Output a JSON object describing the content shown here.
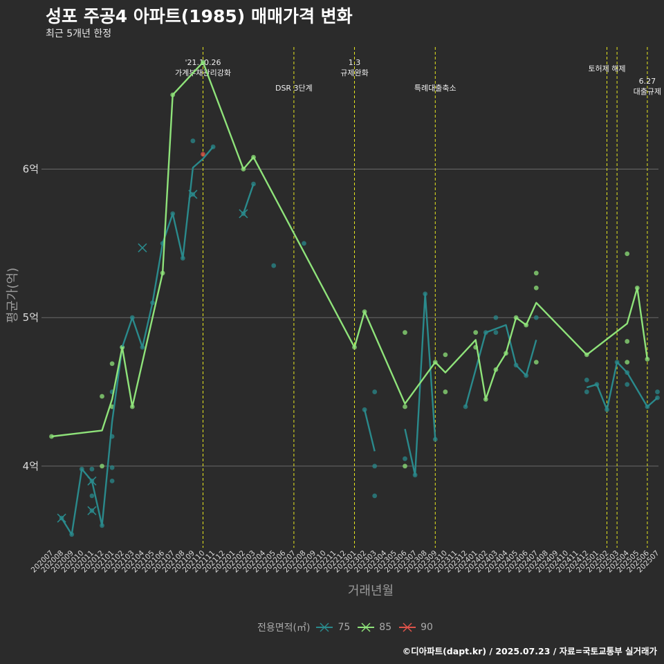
{
  "title": "성포 주공4 아파트(1985) 매매가격 변화",
  "subtitle": "최근 5개년 한정",
  "footer": "©디아파트(dapt.kr) / 2025.07.23 / 자료=국토교통부 실거래가",
  "legend_title": "전용면적(㎡)",
  "colors": {
    "background": "#2b2b2b",
    "s75": "#2a8a8c",
    "s85": "#8fe37a",
    "s90": "#e0534a",
    "vline": "#e8e81e",
    "grid": "#6a6a6a"
  },
  "chart_data": {
    "type": "line",
    "title": "성포 주공4 아파트(1985) 매매가격 변화",
    "xlabel": "거래년월",
    "ylabel": "평균가(억)",
    "ylim": [
      3.45,
      6.85
    ],
    "yticks": [
      {
        "value": 4,
        "label": "4억"
      },
      {
        "value": 5,
        "label": "5억"
      },
      {
        "value": 6,
        "label": "6억"
      }
    ],
    "grid": true,
    "legend_position": "bottom",
    "categories": [
      "202007",
      "202008",
      "202009",
      "202010",
      "202011",
      "202012",
      "202101",
      "202102",
      "202103",
      "202104",
      "202105",
      "202106",
      "202107",
      "202108",
      "202109",
      "202110",
      "202111",
      "202112",
      "202201",
      "202202",
      "202203",
      "202204",
      "202205",
      "202206",
      "202207",
      "202208",
      "202209",
      "202210",
      "202211",
      "202212",
      "202301",
      "202302",
      "202303",
      "202304",
      "202305",
      "202306",
      "202307",
      "202308",
      "202309",
      "202310",
      "202311",
      "202312",
      "202401",
      "202402",
      "202403",
      "202404",
      "202405",
      "202406",
      "202407",
      "202408",
      "202409",
      "202410",
      "202411",
      "202412",
      "202501",
      "202502",
      "202503",
      "202504",
      "202505",
      "202506",
      "202507"
    ],
    "series": [
      {
        "name": "75",
        "segments": [
          [
            [
              "202008",
              3.65
            ],
            [
              "202009",
              3.54
            ],
            [
              "202010",
              3.98
            ],
            [
              "202011",
              3.9
            ],
            [
              "202012",
              3.6
            ],
            [
              "202101",
              4.3
            ],
            [
              "202102",
              4.8
            ],
            [
              "202103",
              5.0
            ],
            [
              "202104",
              4.8
            ],
            [
              "202105",
              5.1
            ],
            [
              "202106",
              5.5
            ],
            [
              "202107",
              5.7
            ],
            [
              "202108",
              5.4
            ],
            [
              "202109",
              6.01
            ],
            [
              "202110",
              6.07
            ],
            [
              "202111",
              6.15
            ]
          ],
          [
            [
              "202202",
              5.7
            ],
            [
              "202203",
              5.9
            ]
          ],
          [
            [
              "202302",
              4.38
            ],
            [
              "202303",
              4.1
            ]
          ],
          [
            [
              "202306",
              4.25
            ],
            [
              "202307",
              3.94
            ],
            [
              "202308",
              5.16
            ],
            [
              "202309",
              4.18
            ]
          ],
          [
            [
              "202312",
              4.4
            ],
            [
              "202401",
              4.65
            ],
            [
              "202402",
              4.9
            ],
            [
              "202404",
              4.95
            ],
            [
              "202405",
              4.68
            ],
            [
              "202406",
              4.61
            ],
            [
              "202407",
              4.85
            ]
          ],
          [
            [
              "202412",
              4.53
            ],
            [
              "202501",
              4.55
            ],
            [
              "202502",
              4.38
            ],
            [
              "202503",
              4.7
            ],
            [
              "202504",
              4.63
            ],
            [
              "202506",
              4.4
            ],
            [
              "202507",
              4.46
            ]
          ]
        ],
        "points": [
          [
            "202008",
            3.65
          ],
          [
            "202009",
            3.54
          ],
          [
            "202010",
            3.98
          ],
          [
            "202011",
            3.98
          ],
          [
            "202011",
            3.9
          ],
          [
            "202011",
            3.8
          ],
          [
            "202011",
            3.7
          ],
          [
            "202012",
            3.6
          ],
          [
            "202101",
            3.9
          ],
          [
            "202101",
            3.99
          ],
          [
            "202101",
            4.2
          ],
          [
            "202101",
            4.5
          ],
          [
            "202102",
            4.8
          ],
          [
            "202103",
            5.0
          ],
          [
            "202104",
            4.8
          ],
          [
            "202105",
            5.1
          ],
          [
            "202106",
            5.5
          ],
          [
            "202107",
            5.7
          ],
          [
            "202108",
            5.4
          ],
          [
            "202109",
            6.19
          ],
          [
            "202109",
            5.83
          ],
          [
            "202111",
            6.15
          ],
          [
            "202202",
            5.7
          ],
          [
            "202203",
            5.9
          ],
          [
            "202205",
            5.35
          ],
          [
            "202208",
            5.5
          ],
          [
            "202302",
            4.38
          ],
          [
            "202303",
            4.5
          ],
          [
            "202303",
            4.0
          ],
          [
            "202303",
            3.8
          ],
          [
            "202306",
            4.05
          ],
          [
            "202307",
            3.94
          ],
          [
            "202308",
            5.16
          ],
          [
            "202309",
            4.18
          ],
          [
            "202312",
            4.4
          ],
          [
            "202402",
            4.9
          ],
          [
            "202403",
            5.0
          ],
          [
            "202403",
            4.9
          ],
          [
            "202405",
            4.68
          ],
          [
            "202406",
            4.61
          ],
          [
            "202407",
            5.0
          ],
          [
            "202412",
            4.58
          ],
          [
            "202412",
            4.5
          ],
          [
            "202501",
            4.55
          ],
          [
            "202502",
            4.38
          ],
          [
            "202503",
            4.7
          ],
          [
            "202504",
            4.55
          ],
          [
            "202504",
            4.63
          ],
          [
            "202506",
            4.4
          ],
          [
            "202507",
            4.5
          ],
          [
            "202507",
            4.46
          ]
        ],
        "crosses": [
          [
            "202008",
            3.65
          ],
          [
            "202011",
            3.9
          ],
          [
            "202011",
            3.7
          ],
          [
            "202104",
            5.47
          ],
          [
            "202109",
            5.83
          ],
          [
            "202202",
            5.7
          ]
        ]
      },
      {
        "name": "85",
        "segments": [
          [
            [
              "202007",
              4.2
            ],
            [
              "202012",
              4.24
            ],
            [
              "202101",
              4.45
            ],
            [
              "202102",
              4.8
            ],
            [
              "202103",
              4.4
            ],
            [
              "202106",
              5.3
            ],
            [
              "202107",
              6.5
            ],
            [
              "202110",
              6.72
            ],
            [
              "202202",
              6.0
            ],
            [
              "202203",
              6.08
            ],
            [
              "202301",
              4.8
            ],
            [
              "202302",
              5.04
            ],
            [
              "202306",
              4.42
            ],
            [
              "202309",
              4.7
            ],
            [
              "202310",
              4.63
            ],
            [
              "202401",
              4.85
            ],
            [
              "202402",
              4.45
            ],
            [
              "202403",
              4.65
            ],
            [
              "202404",
              4.76
            ],
            [
              "202405",
              5.0
            ],
            [
              "202406",
              4.95
            ],
            [
              "202407",
              5.1
            ],
            [
              "202412",
              4.75
            ],
            [
              "202504",
              4.96
            ],
            [
              "202505",
              5.2
            ],
            [
              "202506",
              4.72
            ]
          ]
        ],
        "points": [
          [
            "202007",
            4.2
          ],
          [
            "202012",
            4.47
          ],
          [
            "202012",
            4.0
          ],
          [
            "202101",
            4.69
          ],
          [
            "202101",
            4.4
          ],
          [
            "202102",
            4.8
          ],
          [
            "202103",
            4.4
          ],
          [
            "202106",
            5.3
          ],
          [
            "202107",
            6.5
          ],
          [
            "202110",
            6.72
          ],
          [
            "202202",
            6.0
          ],
          [
            "202203",
            6.08
          ],
          [
            "202301",
            4.8
          ],
          [
            "202302",
            5.04
          ],
          [
            "202306",
            4.9
          ],
          [
            "202306",
            4.4
          ],
          [
            "202306",
            4.0
          ],
          [
            "202309",
            4.7
          ],
          [
            "202310",
            4.75
          ],
          [
            "202310",
            4.5
          ],
          [
            "202401",
            4.9
          ],
          [
            "202401",
            4.8
          ],
          [
            "202402",
            4.45
          ],
          [
            "202403",
            4.65
          ],
          [
            "202404",
            4.76
          ],
          [
            "202405",
            5.0
          ],
          [
            "202406",
            4.95
          ],
          [
            "202407",
            5.3
          ],
          [
            "202407",
            5.2
          ],
          [
            "202407",
            4.7
          ],
          [
            "202412",
            4.75
          ],
          [
            "202504",
            5.43
          ],
          [
            "202504",
            4.84
          ],
          [
            "202504",
            4.7
          ],
          [
            "202505",
            5.2
          ],
          [
            "202506",
            4.72
          ]
        ],
        "crosses": []
      },
      {
        "name": "90",
        "segments": [],
        "points": [
          [
            "202110",
            6.1
          ]
        ],
        "crosses": []
      }
    ],
    "annotations": [
      {
        "x": "202110",
        "lines": [
          "'21.10.26",
          "가계부채관리강화"
        ],
        "row": 1
      },
      {
        "x": "202207",
        "lines": [
          "DSR 3단계"
        ],
        "row": 3
      },
      {
        "x": "202301",
        "lines": [
          "1.3",
          "규제완화"
        ],
        "row": 1
      },
      {
        "x": "202309",
        "lines": [
          "특례대출축소"
        ],
        "row": 3
      },
      {
        "x": "202502",
        "lines": [
          "토허제 해제"
        ],
        "row": 2
      },
      {
        "x": "202503",
        "lines": [],
        "row": 0
      },
      {
        "x": "202506",
        "lines": [
          "6.27",
          "대출규제"
        ],
        "row": 4
      }
    ]
  },
  "legend": [
    {
      "label": "75",
      "color": "#2a8a8c"
    },
    {
      "label": "85",
      "color": "#8fe37a"
    },
    {
      "label": "90",
      "color": "#e0534a"
    }
  ]
}
